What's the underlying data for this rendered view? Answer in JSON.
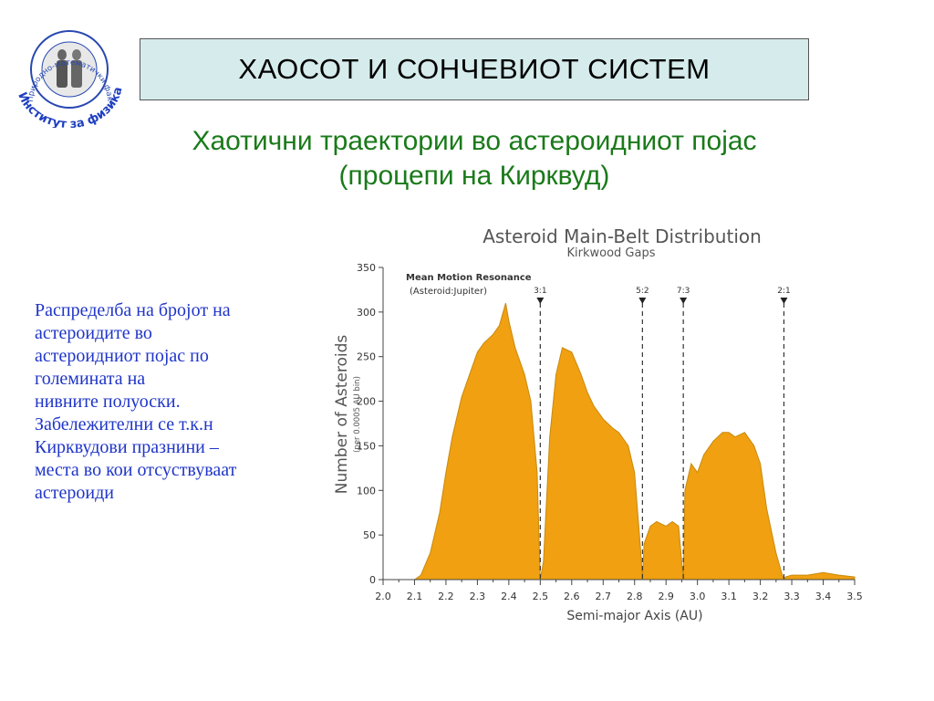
{
  "logo": {
    "ring_text": "Природно-математички факултет",
    "bottom_text": "Институт за физика",
    "icon": "statue-emblem-icon"
  },
  "title": "ХАОСОТ И СОНЧЕВИОТ СИСТЕМ",
  "subtitle_lines": [
    "Хаотични траектории во астероидниот појас",
    "(процепи на Кирквуд)"
  ],
  "description_lines": [
    "Распределба на бројот на",
    "астероидите во",
    "астероидниот појас по",
    "големината на",
    "нивните полуоски.",
    "Забележителни се т.к.н",
    "Кирквудови празнини –",
    "места во кои отсуствуваат",
    "астероиди"
  ],
  "colors": {
    "title_bg": "#d6ecec",
    "subtitle": "#1a7a1a",
    "description": "#1f35c8",
    "fill": "#f0a010",
    "stroke": "#c88a10"
  },
  "chart_data": {
    "type": "area",
    "title": "Asteroid Main-Belt Distribution",
    "subtitle": "Kirkwood Gaps",
    "xlabel": "Semi-major Axis (AU)",
    "ylabel": "Number of Asteroids",
    "ylabel_note": "(per 0.0005 AU bin)",
    "xlim": [
      2.0,
      3.5
    ],
    "ylim": [
      0,
      350
    ],
    "xticks": [
      "2.0",
      "2.1",
      "2.2",
      "2.3",
      "2.4",
      "2.5",
      "2.6",
      "2.7",
      "2.8",
      "2.9",
      "3.0",
      "3.1",
      "3.2",
      "3.3",
      "3.4",
      "3.5"
    ],
    "yticks": [
      "0",
      "50",
      "100",
      "150",
      "200",
      "250",
      "300",
      "350"
    ],
    "legend_title": [
      "Mean Motion Resonance",
      "(Asteroid:Jupiter)"
    ],
    "resonances": [
      {
        "label": "3:1",
        "x": 2.5
      },
      {
        "label": "5:2",
        "x": 2.825
      },
      {
        "label": "7:3",
        "x": 2.955
      },
      {
        "label": "2:1",
        "x": 3.275
      }
    ],
    "x": [
      2.0,
      2.1,
      2.12,
      2.15,
      2.18,
      2.2,
      2.22,
      2.25,
      2.28,
      2.3,
      2.32,
      2.35,
      2.37,
      2.39,
      2.4,
      2.42,
      2.45,
      2.47,
      2.49,
      2.5,
      2.51,
      2.53,
      2.55,
      2.57,
      2.6,
      2.63,
      2.65,
      2.67,
      2.7,
      2.73,
      2.75,
      2.78,
      2.8,
      2.82,
      2.825,
      2.83,
      2.85,
      2.87,
      2.9,
      2.92,
      2.94,
      2.955,
      2.96,
      2.98,
      3.0,
      3.02,
      3.05,
      3.08,
      3.1,
      3.12,
      3.15,
      3.18,
      3.2,
      3.22,
      3.25,
      3.27,
      3.275,
      3.28,
      3.3,
      3.35,
      3.4,
      3.45,
      3.5
    ],
    "y": [
      0,
      0,
      5,
      30,
      75,
      120,
      160,
      205,
      235,
      255,
      265,
      275,
      285,
      310,
      290,
      260,
      230,
      200,
      120,
      0,
      20,
      160,
      230,
      260,
      255,
      230,
      210,
      195,
      180,
      170,
      165,
      150,
      120,
      30,
      0,
      40,
      60,
      65,
      60,
      65,
      60,
      0,
      100,
      130,
      120,
      140,
      155,
      165,
      165,
      160,
      165,
      150,
      130,
      80,
      30,
      5,
      0,
      3,
      5,
      5,
      8,
      5,
      3
    ]
  }
}
